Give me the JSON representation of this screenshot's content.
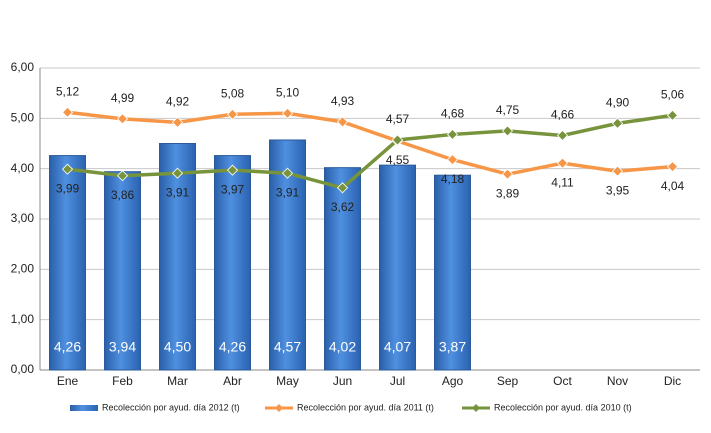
{
  "chart_data": {
    "type": "bar-line",
    "categories": [
      "Ene",
      "Feb",
      "Mar",
      "Abr",
      "May",
      "Jun",
      "Jul",
      "Ago",
      "Sep",
      "Oct",
      "Nov",
      "Dic"
    ],
    "series": [
      {
        "name": "Recolección por ayud. día 2012 (t)",
        "type": "bar",
        "color": "#3b7bd0",
        "values": [
          4.26,
          3.94,
          4.5,
          4.26,
          4.57,
          4.02,
          4.07,
          3.87,
          null,
          null,
          null,
          null
        ],
        "value_labels": [
          "4,26",
          "3,94",
          "4,50",
          "4,26",
          "4,57",
          "4,02",
          "4,07",
          "3,87",
          null,
          null,
          null,
          null
        ]
      },
      {
        "name": "Recolección por ayud. día 2011 (t)",
        "type": "line",
        "color": "#f79646",
        "values": [
          5.12,
          4.99,
          4.92,
          5.08,
          5.1,
          4.93,
          4.55,
          4.18,
          3.89,
          4.11,
          3.95,
          4.04
        ],
        "value_labels": [
          "5,12",
          "4,99",
          "4,92",
          "5,08",
          "5,10",
          "4,93",
          "4,55",
          "4,18",
          "3,89",
          "4,11",
          "3,95",
          "4,04"
        ]
      },
      {
        "name": "Recolección por ayud. día 2010 (t)",
        "type": "line",
        "color": "#77933c",
        "values": [
          3.99,
          3.86,
          3.91,
          3.97,
          3.91,
          3.62,
          4.57,
          4.68,
          4.75,
          4.66,
          4.9,
          5.06
        ],
        "value_labels": [
          "3,99",
          "3,86",
          "3,91",
          "3,97",
          "3,91",
          "3,62",
          "4,57",
          "4,68",
          "4,75",
          "4,66",
          "4,90",
          "5,06"
        ]
      }
    ],
    "ylim": [
      0,
      6
    ],
    "yticks": [
      {
        "value": 0,
        "label": "0,00"
      },
      {
        "value": 1,
        "label": "1,00"
      },
      {
        "value": 2,
        "label": "2,00"
      },
      {
        "value": 3,
        "label": "3,00"
      },
      {
        "value": 4,
        "label": "4,00"
      },
      {
        "value": 5,
        "label": "5,00"
      },
      {
        "value": 6,
        "label": "6,00"
      }
    ],
    "grid": true,
    "legend": "bottom"
  }
}
